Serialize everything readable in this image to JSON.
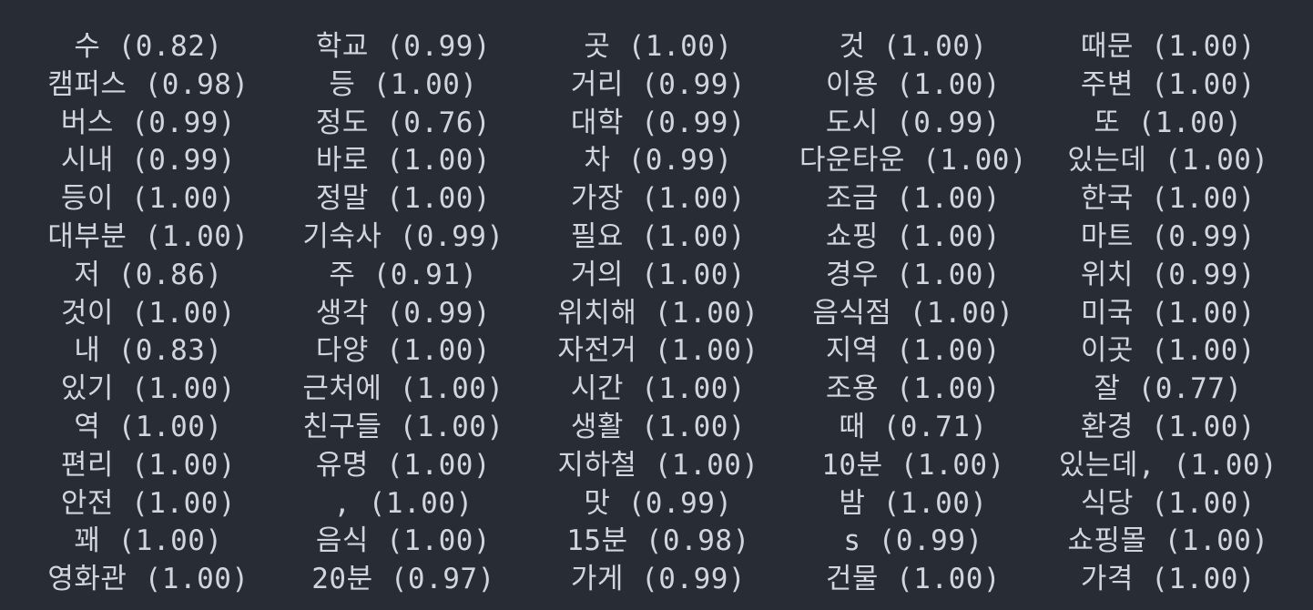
{
  "terminal": {
    "rows": [
      [
        "수 (0.82)",
        "학교 (0.99)",
        "곳 (1.00)",
        "것 (1.00)",
        "때문 (1.00)"
      ],
      [
        "캠퍼스 (0.98)",
        "등 (1.00)",
        "거리 (0.99)",
        "이용 (1.00)",
        "주변 (1.00)"
      ],
      [
        "버스 (0.99)",
        "정도 (0.76)",
        "대학 (0.99)",
        "도시 (0.99)",
        "또 (1.00)"
      ],
      [
        "시내 (0.99)",
        "바로 (1.00)",
        "차 (0.99)",
        "다운타운 (1.00)",
        "있는데 (1.00)"
      ],
      [
        "등이 (1.00)",
        "정말 (1.00)",
        "가장 (1.00)",
        "조금 (1.00)",
        "한국 (1.00)"
      ],
      [
        "대부분 (1.00)",
        "기숙사 (0.99)",
        "필요 (1.00)",
        "쇼핑 (1.00)",
        "마트 (0.99)"
      ],
      [
        "저 (0.86)",
        "주 (0.91)",
        "거의 (1.00)",
        "경우 (1.00)",
        "위치 (0.99)"
      ],
      [
        "것이 (1.00)",
        "생각 (0.99)",
        "위치해 (1.00)",
        "음식점 (1.00)",
        "미국 (1.00)"
      ],
      [
        "내 (0.83)",
        "다양 (1.00)",
        "자전거 (1.00)",
        "지역 (1.00)",
        "이곳 (1.00)"
      ],
      [
        "있기 (1.00)",
        "근처에 (1.00)",
        "시간 (1.00)",
        "조용 (1.00)",
        "잘 (0.77)"
      ],
      [
        "역 (1.00)",
        "친구들 (1.00)",
        "생활 (1.00)",
        "때 (0.71)",
        "환경 (1.00)"
      ],
      [
        "편리 (1.00)",
        "유명 (1.00)",
        "지하철 (1.00)",
        "10분 (1.00)",
        "있는데, (1.00)"
      ],
      [
        "안전 (1.00)",
        ", (1.00)",
        "맛 (0.99)",
        "밤 (1.00)",
        "식당 (1.00)"
      ],
      [
        "꽤 (1.00)",
        "음식 (1.00)",
        "15분 (0.98)",
        "s (0.99)",
        "쇼핑몰 (1.00)"
      ],
      [
        "영화관 (1.00)",
        "20분 (0.97)",
        "가게 (0.99)",
        "건물 (1.00)",
        "가격 (1.00)"
      ],
      [
        "",
        "",
        "",
        "",
        ""
      ]
    ]
  }
}
